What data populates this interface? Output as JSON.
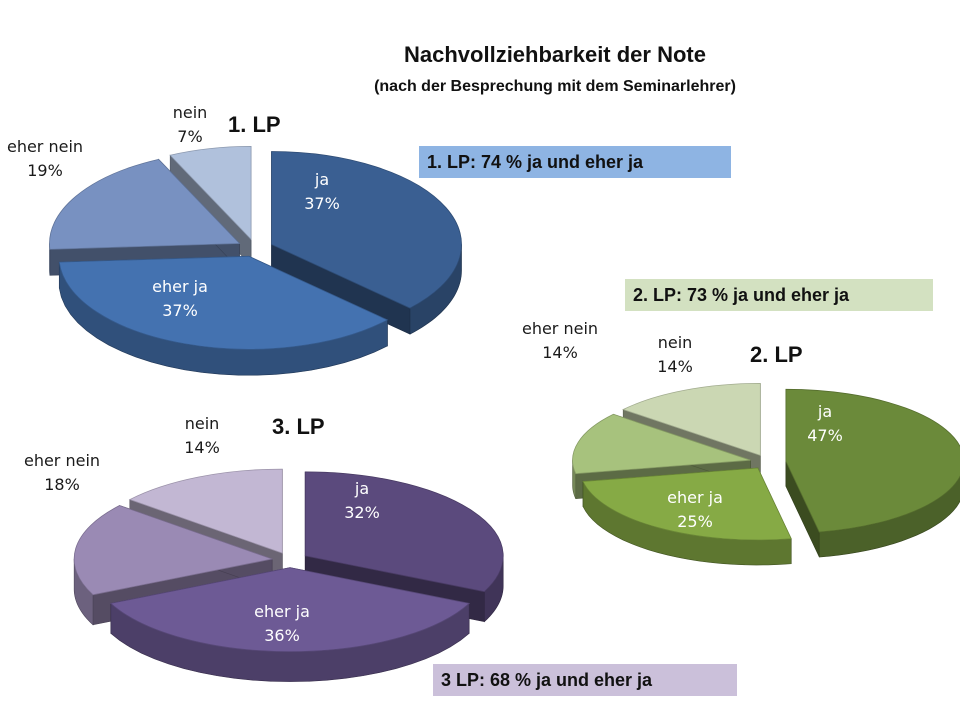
{
  "title": "Nachvollziehbarkeit der Note",
  "subtitle": "(nach der Besprechung mit dem Seminarlehrer)",
  "notes": [
    "1. LP: 74 % ja und eher ja",
    "2. LP: 73 % ja und eher ja",
    "3 LP: 68 % ja und eher ja"
  ],
  "chart_data": [
    {
      "type": "pie",
      "title": "1. LP",
      "categories": [
        "ja",
        "eher ja",
        "eher nein",
        "nein"
      ],
      "values": [
        37,
        37,
        19,
        7
      ],
      "labels": [
        "37%",
        "37%",
        "19%",
        "7%"
      ],
      "colors": [
        "#3a5f92",
        "#4472b0",
        "#7891c1",
        "#b0c1dc"
      ]
    },
    {
      "type": "pie",
      "title": "2. LP",
      "categories": [
        "ja",
        "eher ja",
        "eher nein",
        "nein"
      ],
      "values": [
        47,
        25,
        14,
        14
      ],
      "labels": [
        "47%",
        "25%",
        "14%",
        "14%"
      ],
      "colors": [
        "#6b8a3a",
        "#86aa45",
        "#a7c27d",
        "#cbd7b3"
      ]
    },
    {
      "type": "pie",
      "title": "3. LP",
      "categories": [
        "ja",
        "eher ja",
        "eher nein",
        "nein"
      ],
      "values": [
        32,
        36,
        18,
        14
      ],
      "labels": [
        "32%",
        "36%",
        "18%",
        "14%"
      ],
      "colors": [
        "#5b4a7d",
        "#6d5a95",
        "#9a8ab4",
        "#c2b7d3"
      ]
    }
  ]
}
